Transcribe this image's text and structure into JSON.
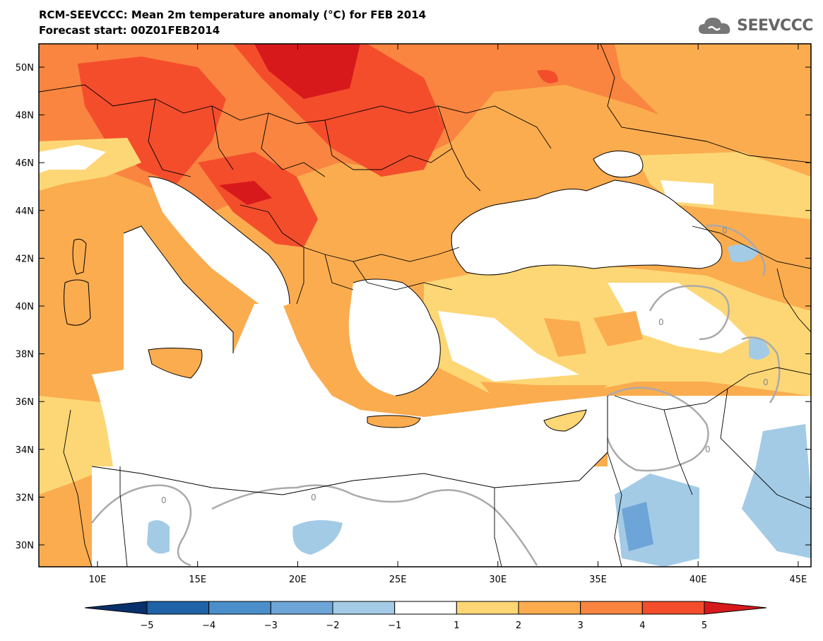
{
  "title": "RCM-SEEVCCC: Mean 2m temperature anomaly (°C) for FEB 2014",
  "subtitle": "Forecast start: 00Z01FEB2014",
  "logo_text": "SEEVCCC",
  "logo_icon": "cloud-icon",
  "lat_labels": [
    "50N",
    "48N",
    "46N",
    "44N",
    "42N",
    "40N",
    "38N",
    "36N",
    "34N",
    "32N",
    "30N"
  ],
  "lon_labels": [
    "10E",
    "15E",
    "20E",
    "25E",
    "30E",
    "35E",
    "40E",
    "45E"
  ],
  "contour_label": "0",
  "colorbar": {
    "ticks": [
      "−5",
      "−4",
      "−3",
      "−2",
      "−1",
      "1",
      "2",
      "3",
      "4",
      "5"
    ],
    "colors": [
      "#08306b",
      "#1f62a8",
      "#4b8fca",
      "#6ea5d8",
      "#a3cbe6",
      "#ffffff",
      "#fdd775",
      "#fbac4f",
      "#f98540",
      "#f44d2c",
      "#d7191c"
    ]
  },
  "colors": {
    "sea": "#ffffff",
    "land_cool": "#ffffff",
    "anom_1_2": "#fdd775",
    "anom_2_3": "#fbac4f",
    "anom_3_4": "#f98540",
    "anom_4_5": "#f44d2c",
    "anom_5plus": "#d7191c",
    "neg_1_2": "#a3cbe6",
    "neg_2_3": "#6ea5d8",
    "contour": "#aaaaaa"
  }
}
